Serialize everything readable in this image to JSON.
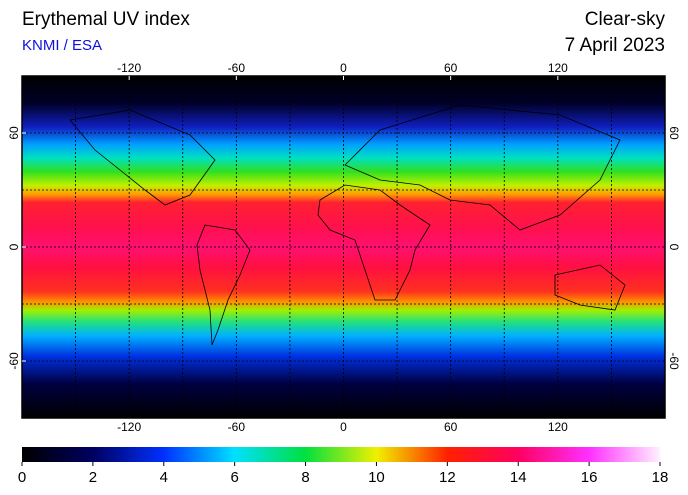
{
  "header": {
    "title": "Erythemal UV index",
    "source": "KNMI / ESA",
    "condition": "Clear-sky",
    "date": "7 April 2023"
  },
  "map": {
    "xlim": [
      -180,
      180
    ],
    "ylim": [
      -90,
      90
    ],
    "xticks": [
      -120,
      -60,
      0,
      60,
      120
    ],
    "yticks": [
      60,
      0,
      -60
    ]
  },
  "colorbar": {
    "ticks": [
      0,
      2,
      4,
      6,
      8,
      10,
      12,
      14,
      16,
      18
    ]
  }
}
